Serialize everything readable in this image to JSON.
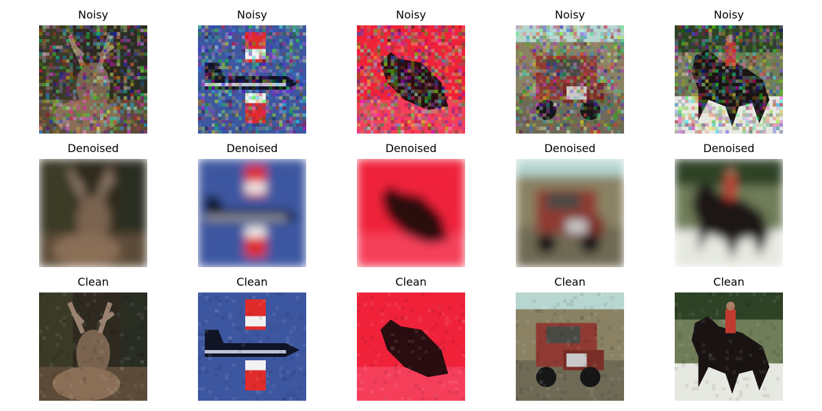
{
  "figure": {
    "rows": [
      {
        "row_title": "Noisy",
        "images": [
          {
            "subject": "deer",
            "variant": "noisy"
          },
          {
            "subject": "airplane",
            "variant": "noisy"
          },
          {
            "subject": "cat on red background",
            "variant": "noisy"
          },
          {
            "subject": "truck",
            "variant": "noisy"
          },
          {
            "subject": "horse with rider",
            "variant": "noisy"
          }
        ]
      },
      {
        "row_title": "Denoised",
        "images": [
          {
            "subject": "deer",
            "variant": "denoised"
          },
          {
            "subject": "airplane",
            "variant": "denoised"
          },
          {
            "subject": "cat on red background",
            "variant": "denoised"
          },
          {
            "subject": "truck",
            "variant": "denoised"
          },
          {
            "subject": "horse with rider",
            "variant": "denoised"
          }
        ]
      },
      {
        "row_title": "Clean",
        "images": [
          {
            "subject": "deer",
            "variant": "clean"
          },
          {
            "subject": "airplane",
            "variant": "clean"
          },
          {
            "subject": "cat on red background",
            "variant": "clean"
          },
          {
            "subject": "truck",
            "variant": "clean"
          },
          {
            "subject": "horse with rider",
            "variant": "clean"
          }
        ]
      }
    ]
  },
  "colors": {
    "deer_bg": "#2f2a1f",
    "plane_bg": "#3d56a0",
    "cat_bg": "#f0223a",
    "truck_bg": "#8a8263",
    "horse_bg": "#6f7d58"
  }
}
